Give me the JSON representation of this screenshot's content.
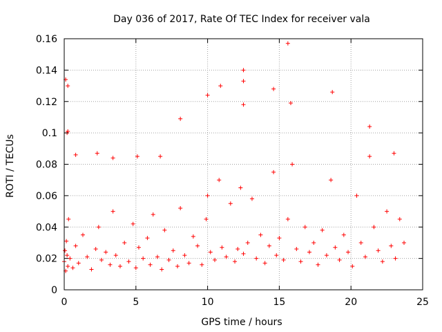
{
  "chart_data": {
    "type": "scatter",
    "title": "Day 036 of 2017, Rate Of TEC Index for receiver vala",
    "xlabel": "GPS time / hours",
    "ylabel": "ROTI / TECUs",
    "xlim": [
      0,
      25
    ],
    "ylim": [
      0,
      0.16
    ],
    "x_ticks": [
      0,
      5,
      10,
      15,
      20,
      25
    ],
    "x_tick_labels": [
      "0",
      "5",
      "10",
      "15",
      "20",
      "25"
    ],
    "y_ticks": [
      0,
      0.02,
      0.04,
      0.06,
      0.08,
      0.1,
      0.12,
      0.14,
      0.16
    ],
    "y_tick_labels": [
      "0",
      "0.02",
      "0.04",
      "0.06",
      "0.08",
      "0.1",
      "0.12",
      "0.14",
      "0.16"
    ],
    "grid": true,
    "marker": "+",
    "color": "#ff0000",
    "series": [
      {
        "name": "ROTI",
        "x": [
          0.0,
          0.05,
          0.1,
          0.15,
          0.2,
          0.25,
          0.3,
          0.4,
          0.6,
          0.8,
          1.0,
          1.3,
          1.6,
          1.9,
          2.2,
          2.4,
          2.6,
          2.9,
          3.2,
          3.4,
          3.6,
          3.9,
          4.2,
          4.5,
          4.8,
          5.0,
          5.2,
          5.5,
          5.8,
          6.0,
          6.2,
          6.5,
          6.8,
          7.0,
          7.3,
          7.6,
          7.9,
          8.1,
          8.4,
          8.7,
          9.0,
          9.3,
          9.6,
          9.9,
          10.0,
          10.2,
          10.5,
          10.8,
          11.0,
          11.3,
          11.6,
          11.9,
          12.1,
          12.3,
          12.5,
          12.8,
          13.1,
          13.4,
          13.7,
          14.0,
          14.3,
          14.6,
          14.8,
          15.0,
          15.3,
          15.6,
          15.9,
          16.2,
          16.5,
          16.8,
          17.1,
          17.4,
          17.7,
          18.0,
          18.3,
          18.6,
          18.9,
          19.2,
          19.5,
          19.8,
          20.1,
          20.4,
          20.7,
          21.0,
          21.3,
          21.6,
          21.9,
          22.2,
          22.5,
          22.8,
          23.1,
          23.4,
          23.7,
          0.1,
          0.25,
          0.8,
          2.3,
          3.4,
          5.1,
          6.7,
          8.1,
          10.0,
          10.9,
          12.5,
          12.5,
          12.5,
          14.6,
          15.6,
          15.8,
          18.7,
          21.3,
          23.0,
          0.2,
          0.25
        ],
        "y": [
          0.018,
          0.025,
          0.012,
          0.031,
          0.022,
          0.015,
          0.045,
          0.02,
          0.014,
          0.028,
          0.017,
          0.035,
          0.021,
          0.013,
          0.026,
          0.04,
          0.019,
          0.024,
          0.016,
          0.05,
          0.022,
          0.015,
          0.03,
          0.018,
          0.042,
          0.014,
          0.027,
          0.02,
          0.033,
          0.016,
          0.048,
          0.021,
          0.013,
          0.038,
          0.019,
          0.025,
          0.015,
          0.052,
          0.022,
          0.017,
          0.034,
          0.028,
          0.016,
          0.045,
          0.06,
          0.024,
          0.019,
          0.07,
          0.027,
          0.021,
          0.055,
          0.018,
          0.026,
          0.065,
          0.023,
          0.03,
          0.058,
          0.02,
          0.035,
          0.017,
          0.028,
          0.075,
          0.022,
          0.033,
          0.019,
          0.045,
          0.08,
          0.026,
          0.018,
          0.04,
          0.024,
          0.03,
          0.016,
          0.038,
          0.022,
          0.07,
          0.027,
          0.019,
          0.035,
          0.024,
          0.015,
          0.06,
          0.03,
          0.021,
          0.085,
          0.04,
          0.025,
          0.018,
          0.05,
          0.028,
          0.02,
          0.045,
          0.03,
          0.134,
          0.13,
          0.086,
          0.087,
          0.084,
          0.085,
          0.085,
          0.109,
          0.124,
          0.13,
          0.14,
          0.133,
          0.118,
          0.128,
          0.157,
          0.119,
          0.126,
          0.104,
          0.087,
          0.1,
          0.101
        ]
      }
    ]
  }
}
